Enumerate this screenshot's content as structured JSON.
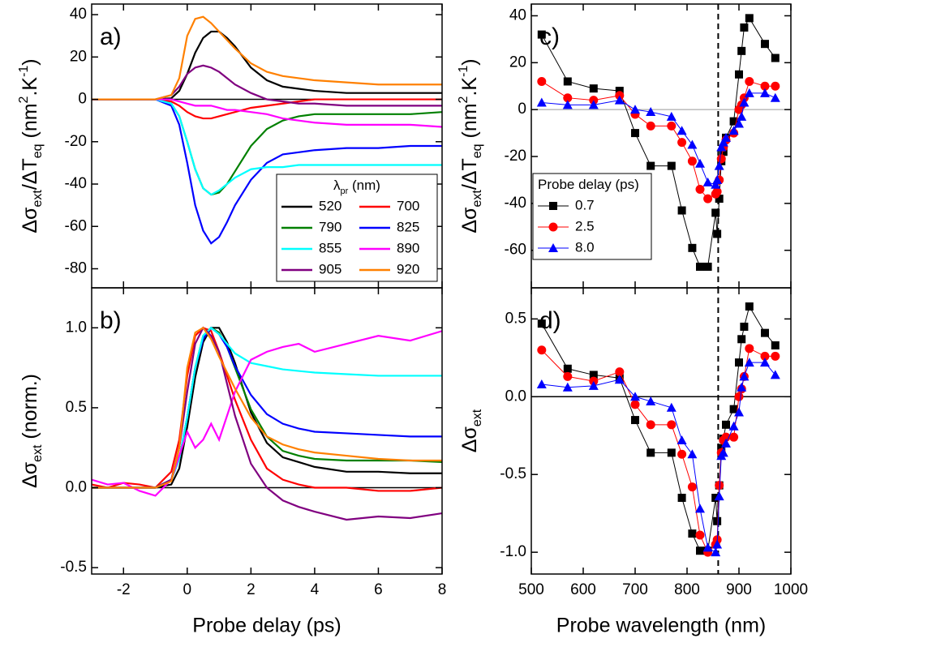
{
  "chart_data": [
    {
      "type": "line",
      "panel_label": "a)",
      "ylabel": [
        {
          "text": "Δσ"
        },
        {
          "text": "ext",
          "shift": "sub"
        },
        {
          "text": "/ΔT"
        },
        {
          "text": "eq",
          "shift": "sub"
        },
        {
          "text": " (nm"
        },
        {
          "text": "2",
          "shift": "super"
        },
        {
          "text": ".K"
        },
        {
          "text": "-1",
          "shift": "super"
        },
        {
          "text": ")"
        }
      ],
      "xlim": [
        -3,
        8
      ],
      "xticks": [
        -2,
        0,
        2,
        4,
        6,
        8
      ],
      "xtick_labels": false,
      "ylim": [
        -89,
        45
      ],
      "yticks": [
        -80,
        -60,
        -40,
        -20,
        0,
        20,
        40
      ],
      "hline": 0,
      "hline_color": "#000000",
      "legend_title": [
        {
          "text": "λ"
        },
        {
          "text": "pr",
          "shift": "sub"
        },
        {
          "text": " (nm)"
        }
      ],
      "legend_loc": "lower right",
      "legend_columns": 2,
      "x": [
        -3,
        -2.5,
        -2,
        -1.5,
        -1,
        -0.5,
        -0.25,
        0,
        0.25,
        0.5,
        0.75,
        1,
        1.25,
        1.5,
        2,
        2.5,
        3,
        3.5,
        4,
        5,
        6,
        7,
        8
      ],
      "series": [
        {
          "name": "520",
          "color": "#000000",
          "values": [
            0,
            0,
            0,
            0,
            0,
            0.5,
            4,
            12,
            22,
            29,
            32,
            32,
            29,
            25,
            15,
            9,
            6,
            5,
            4,
            3,
            3,
            3,
            3
          ]
        },
        {
          "name": "700",
          "color": "#ff0000",
          "values": [
            0,
            0,
            0,
            0,
            0,
            -1,
            -3,
            -6,
            -8,
            -9,
            -9,
            -8,
            -7,
            -6,
            -4,
            -3,
            -2,
            -1,
            0,
            0,
            0,
            0,
            0
          ]
        },
        {
          "name": "790",
          "color": "#008000",
          "values": [
            0,
            0,
            0,
            0,
            0,
            -2,
            -8,
            -20,
            -33,
            -42,
            -45,
            -44,
            -40,
            -34,
            -22,
            -14,
            -10,
            -8,
            -7,
            -7,
            -7,
            -7,
            -6
          ]
        },
        {
          "name": "825",
          "color": "#0000ff",
          "values": [
            0,
            0,
            0,
            0,
            0,
            -3,
            -12,
            -30,
            -50,
            -62,
            -68,
            -65,
            -58,
            -50,
            -38,
            -30,
            -26,
            -25,
            -24,
            -23,
            -23,
            -22,
            -22
          ]
        },
        {
          "name": "855",
          "color": "#00ffff",
          "values": [
            0,
            0,
            0,
            0,
            0,
            -2,
            -8,
            -20,
            -33,
            -42,
            -45,
            -43,
            -40,
            -37,
            -33,
            -32,
            -32,
            -31,
            -31,
            -31,
            -31,
            -31,
            -31
          ]
        },
        {
          "name": "890",
          "color": "#ff00ff",
          "values": [
            0,
            0,
            0,
            0,
            0,
            0,
            -1,
            -2,
            -3,
            -3,
            -3,
            -4,
            -5,
            -5,
            -6,
            -7,
            -9,
            -10,
            -11,
            -12,
            -12,
            -12,
            -13
          ]
        },
        {
          "name": "905",
          "color": "#800080",
          "values": [
            0,
            0,
            0,
            0,
            0,
            2,
            6,
            12,
            15,
            16,
            15,
            13,
            10,
            7,
            3,
            0,
            -1,
            -2,
            -2,
            -3,
            -3,
            -3,
            -3
          ]
        },
        {
          "name": "920",
          "color": "#ff8000",
          "values": [
            0,
            0,
            0,
            0,
            0,
            2,
            10,
            30,
            38,
            39,
            36,
            32,
            28,
            24,
            17,
            13,
            11,
            10,
            9,
            8,
            7,
            7,
            7
          ]
        }
      ]
    },
    {
      "type": "line",
      "panel_label": "b)",
      "ylabel": [
        {
          "text": "Δσ"
        },
        {
          "text": "ext",
          "shift": "sub"
        },
        {
          "text": " (norm.)"
        }
      ],
      "xlabel": "Probe delay (ps)",
      "xlim": [
        -3,
        8
      ],
      "xticks": [
        -2,
        0,
        2,
        4,
        6,
        8
      ],
      "xtick_labels": true,
      "ylim": [
        -0.54,
        1.25
      ],
      "yticks": [
        -0.5,
        {
          "value": 0,
          "label": "0.0"
        },
        0.5,
        {
          "value": 1,
          "label": "1.0"
        }
      ],
      "hline": 0,
      "hline_color": "#000000",
      "x": [
        -3,
        -2.5,
        -2,
        -1.5,
        -1,
        -0.5,
        -0.25,
        0,
        0.25,
        0.5,
        0.75,
        1,
        1.25,
        1.5,
        2,
        2.5,
        3,
        3.5,
        4,
        5,
        6,
        7,
        8
      ],
      "series": [
        {
          "color": "#000000",
          "values": [
            0,
            0,
            0,
            0,
            0,
            0.02,
            0.12,
            0.38,
            0.69,
            0.91,
            1,
            1,
            0.91,
            0.78,
            0.47,
            0.28,
            0.19,
            0.16,
            0.13,
            0.1,
            0.1,
            0.09,
            0.09
          ]
        },
        {
          "color": "#ff0000",
          "values": [
            0.02,
            0,
            0.03,
            0.02,
            0,
            0.1,
            0.3,
            0.7,
            0.95,
            1,
            0.98,
            0.85,
            0.7,
            0.55,
            0.3,
            0.12,
            0.05,
            0.02,
            0,
            0,
            -0.02,
            -0.02,
            0
          ]
        },
        {
          "color": "#008000",
          "values": [
            0,
            0,
            0,
            0,
            0,
            0.05,
            0.18,
            0.44,
            0.75,
            0.95,
            1,
            0.97,
            0.88,
            0.75,
            0.49,
            0.32,
            0.23,
            0.2,
            0.18,
            0.17,
            0.17,
            0.17,
            0.16
          ]
        },
        {
          "color": "#0000ff",
          "values": [
            0,
            0,
            0,
            0,
            0,
            0.05,
            0.18,
            0.44,
            0.75,
            0.93,
            1,
            0.96,
            0.88,
            0.76,
            0.58,
            0.46,
            0.4,
            0.37,
            0.35,
            0.34,
            0.33,
            0.32,
            0.32
          ]
        },
        {
          "color": "#00ffff",
          "values": [
            0,
            0,
            0,
            0,
            0,
            0.05,
            0.18,
            0.44,
            0.75,
            0.95,
            1,
            0.96,
            0.9,
            0.84,
            0.78,
            0.76,
            0.74,
            0.73,
            0.72,
            0.71,
            0.7,
            0.7,
            0.7
          ]
        },
        {
          "color": "#ff00ff",
          "values": [
            0.05,
            0.02,
            0.03,
            -0.02,
            -0.05,
            0.05,
            0.2,
            0.35,
            0.25,
            0.3,
            0.4,
            0.3,
            0.45,
            0.6,
            0.8,
            0.85,
            0.88,
            0.9,
            0.85,
            0.9,
            0.95,
            0.92,
            0.98
          ]
        },
        {
          "color": "#800080",
          "values": [
            0,
            0,
            0,
            0,
            0,
            0.05,
            0.25,
            0.6,
            0.9,
            1,
            0.95,
            0.85,
            0.65,
            0.45,
            0.15,
            0,
            -0.08,
            -0.12,
            -0.15,
            -0.2,
            -0.18,
            -0.19,
            -0.16
          ]
        },
        {
          "color": "#ff8000",
          "values": [
            0,
            0,
            0,
            0,
            0,
            0.04,
            0.25,
            0.75,
            0.97,
            1,
            0.93,
            0.82,
            0.72,
            0.62,
            0.44,
            0.32,
            0.27,
            0.24,
            0.22,
            0.2,
            0.18,
            0.17,
            0.17
          ]
        }
      ]
    },
    {
      "type": "line",
      "panel_label": "c)",
      "ylabel": [
        {
          "text": "Δσ"
        },
        {
          "text": "ext",
          "shift": "sub"
        },
        {
          "text": "/ΔT"
        },
        {
          "text": "eq",
          "shift": "sub"
        },
        {
          "text": " (nm"
        },
        {
          "text": "2",
          "shift": "super"
        },
        {
          "text": ".K"
        },
        {
          "text": "-1",
          "shift": "super"
        },
        {
          "text": ")"
        }
      ],
      "xlim": [
        500,
        1000
      ],
      "xticks": [
        500,
        600,
        700,
        800,
        900,
        1000
      ],
      "xtick_labels": false,
      "ylim": [
        -76,
        45
      ],
      "yticks": [
        -60,
        -40,
        -20,
        0,
        20,
        40
      ],
      "hline": 0,
      "hline_color": "#999999",
      "vline": 860,
      "legend_title": [
        {
          "text": "Probe delay (ps)"
        }
      ],
      "legend_loc": "lower left",
      "legend_columns": 1,
      "x": [
        520,
        570,
        620,
        670,
        700,
        730,
        770,
        790,
        810,
        825,
        840,
        855,
        858,
        862,
        866,
        870,
        875,
        890,
        900,
        905,
        910,
        920,
        950,
        970
      ],
      "series": [
        {
          "name": "0.7",
          "color": "#000000",
          "marker": "square",
          "values": [
            32,
            12,
            9,
            8,
            -10,
            -24,
            -24,
            -43,
            -59,
            -67,
            -67,
            -44,
            -53,
            -38,
            -22,
            -18,
            -12,
            -5,
            15,
            25,
            35,
            39,
            28,
            22
          ]
        },
        {
          "name": "2.5",
          "color": "#ff0000",
          "marker": "circle",
          "values": [
            12,
            5,
            4,
            6,
            -2,
            -7,
            -7,
            -14,
            -22,
            -34,
            -38,
            -36,
            -35,
            -30,
            -21,
            -16,
            -13,
            -10,
            0,
            2,
            5,
            12,
            10,
            10
          ]
        },
        {
          "name": "8.0",
          "color": "#0000ff",
          "marker": "triangle",
          "values": [
            3,
            2,
            2,
            4,
            0,
            -1,
            -3,
            -9,
            -15,
            -23,
            -31,
            -32,
            -30,
            -24,
            -16,
            -14,
            -12,
            -9,
            -6,
            -3,
            3,
            7,
            7,
            5
          ]
        }
      ]
    },
    {
      "type": "line",
      "panel_label": "d)",
      "ylabel": [
        {
          "text": "Δσ"
        },
        {
          "text": "ext",
          "shift": "sub"
        }
      ],
      "xlabel": "Probe wavelength (nm)",
      "xlim": [
        500,
        1000
      ],
      "xticks": [
        500,
        600,
        700,
        800,
        900,
        1000
      ],
      "xtick_labels": true,
      "ylim": [
        -1.14,
        0.7
      ],
      "yticks": [
        {
          "value": -1,
          "label": "-1.0"
        },
        -0.5,
        {
          "value": 0,
          "label": "0.0"
        },
        0.5
      ],
      "hline": 0,
      "hline_color": "#000000",
      "vline": 860,
      "x": [
        520,
        570,
        620,
        670,
        700,
        730,
        770,
        790,
        810,
        825,
        840,
        855,
        858,
        862,
        866,
        870,
        875,
        890,
        900,
        905,
        910,
        920,
        950,
        970
      ],
      "series": [
        {
          "color": "#000000",
          "marker": "square",
          "values": [
            0.47,
            0.18,
            0.14,
            0.12,
            -0.15,
            -0.36,
            -0.36,
            -0.65,
            -0.88,
            -0.99,
            -0.99,
            -0.65,
            -0.8,
            -0.57,
            -0.33,
            -0.27,
            -0.18,
            -0.08,
            0.22,
            0.37,
            0.45,
            0.58,
            0.41,
            0.33
          ]
        },
        {
          "color": "#ff0000",
          "marker": "circle",
          "values": [
            0.3,
            0.13,
            0.1,
            0.16,
            -0.05,
            -0.18,
            -0.18,
            -0.37,
            -0.58,
            -0.89,
            -1.0,
            -0.95,
            -0.92,
            -0.57,
            -0.36,
            -0.28,
            -0.26,
            -0.26,
            0,
            0.05,
            0.13,
            0.31,
            0.26,
            0.26
          ]
        },
        {
          "color": "#0000ff",
          "marker": "triangle",
          "values": [
            0.08,
            0.06,
            0.07,
            0.11,
            0,
            -0.03,
            -0.07,
            -0.28,
            -0.37,
            -0.72,
            -0.97,
            -1.0,
            -0.95,
            -0.64,
            -0.38,
            -0.36,
            -0.3,
            -0.19,
            -0.1,
            0.06,
            0.13,
            0.22,
            0.22,
            0.14
          ]
        }
      ]
    }
  ]
}
